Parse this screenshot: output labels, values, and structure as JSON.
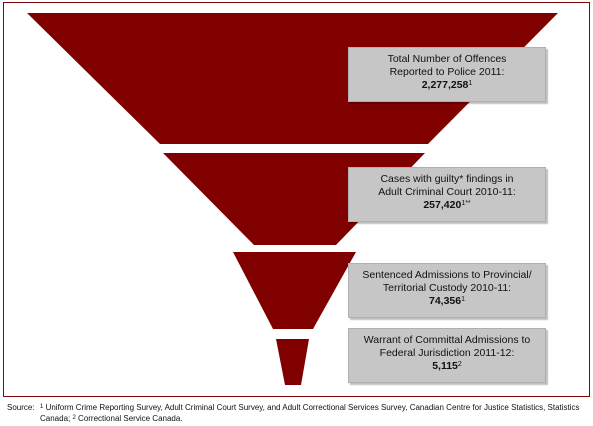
{
  "stages": [
    {
      "line1": "Total Number of Offences",
      "line2": "Reported to Police 2011:",
      "value": "2,277,258",
      "sup": "1"
    },
    {
      "line1": "Cases with guilty* findings in",
      "line2": "Adult Criminal Court 2010-11:",
      "value": "257,420",
      "sup": "1**"
    },
    {
      "line1": "Sentenced Admissions to Provincial/",
      "line2": "Territorial Custody 2010-11:",
      "value": "74,356",
      "sup": "1"
    },
    {
      "line1": "Warrant of Committal Admissions to",
      "line2": "Federal Jurisdiction 2011-12:",
      "value": "5,115",
      "sup": "2"
    }
  ],
  "source": {
    "label": "Source:",
    "sup1": "1",
    "text1": " Uniform Crime Reporting Survey, Adult Criminal Court Survey, and Adult Correctional Services Survey, Canadian Centre for Justice Statistics, Statistics Canada; ",
    "sup2": "2",
    "text2": " Correctional Service Canada."
  },
  "colors": {
    "funnel": "#800000",
    "box": "#c6c6c6",
    "frame": "#7d0a0a"
  }
}
